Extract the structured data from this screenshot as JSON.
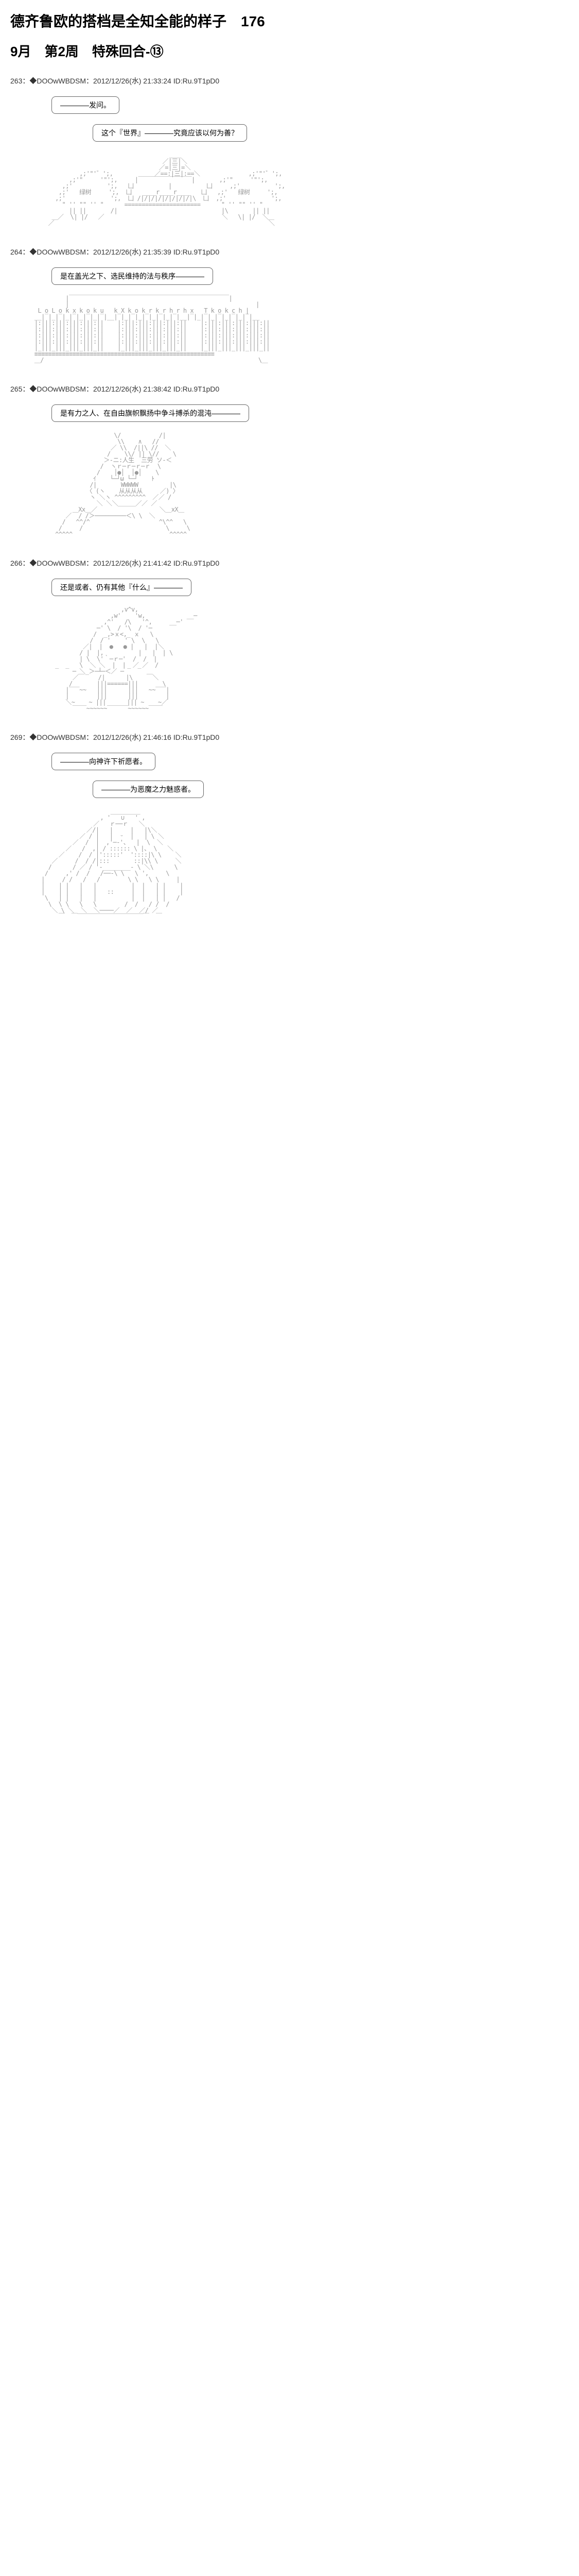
{
  "page_title": "德齐鲁欧的搭档是全知全能的样子　176",
  "chapter_title": "9月　第2周　特殊回合-⑬",
  "posts": [
    {
      "number": "263",
      "author": "◆DOOwWBDSM",
      "timestamp": "2012/12/26(水) 21:33:24",
      "id": "ID:Ru.9T1pD0",
      "speeches": [
        "————发问。",
        "这个『世界』————究竟应该以何为善？"
      ],
      "art": "temple"
    },
    {
      "number": "264",
      "author": "◆DOOwWBDSM",
      "timestamp": "2012/12/26(水) 21:35:39",
      "id": "ID:Ru.9T1pD0",
      "speeches": [
        "是在盖光之下、选民维持的法与秩序————"
      ],
      "art": "building"
    },
    {
      "number": "265",
      "author": "◆DOOwWBDSM",
      "timestamp": "2012/12/26(水) 21:38:42",
      "id": "ID:Ru.9T1pD0",
      "speeches": [
        "是有力之人、在自由旗帜飘扬中争斗搏杀的混沌————"
      ],
      "art": "demon"
    },
    {
      "number": "266",
      "author": "◆DOOwWBDSM",
      "timestamp": "2012/12/26(水) 21:41:42",
      "id": "ID:Ru.9T1pD0",
      "speeches": [
        "还是或者、仍有其他『什么』————"
      ],
      "art": "thinker"
    },
    {
      "number": "269",
      "author": "◆DOOwWBDSM",
      "timestamp": "2012/12/26(水) 21:46:16",
      "id": "ID:Ru.9T1pD0",
      "speeches": [
        "————向神许下祈愿者。",
        "————为恶魔之力魅惑者。"
      ],
      "art": "woman"
    }
  ],
  "ascii_arts": {
    "temple": "                                        ＿＿\n                                      ／|三|＼\n                                     ／=|三|=＼\n              ,;'\"'゛';,            ／==:|三|:==＼              ,;'\"'゛';,\n           ,;'\"     '\"';,     |￣￣￣￣￣￣￣￣￣|       ,;'\"     '\"';,\n         ,;'          ';,   凵          |          凵     ,;'          ';,\n        ,;'   绿树     ';,  凵   ____r____r____   凵   ,;'   绿树     ';,\n       ,;'             ';,  凵 /|/|/|/|/|/|/|/|\\  凵  ,;'             ';,\n         \" '' \"\" '' \"      ======================      \" '' \"\" '' \"\n           || ||       /|                              |\\       || ||\n      ＿／  \\| |/   ／                                  ＼   \\| |/  ＼＿\n     ／                                                              ＼",
    "building": "          |￣￣￣￣￣￣￣￣￣￣￣￣￣￣￣￣￣￣￣￣￣￣￣￣￣￣￣|\n          |                                                      |\n  L o L o k x k o k u   k X k o k r k r h r h x   T k o k c h |\n __|‾|_|‾|_|‾|_|‾|_|‾|__|‾|_|‾|_|‾|_|‾|_|‾|__|‾|_|‾|_|‾|_|‾|_|‾|__\n |:|||:|||:|||:|||:||    |:|||:|||:|||:|||:||    |:|||:|||:|||:|||:||\n |:|||:|||:|||:|||:||    |:|||:|||:|||:|||:||    |:|||:|||:|||:|||:||\n |:|||:|||:|||:|||:||    |:|||:|||:|||:|||:||    |:|||:|||:|||:|||:||\n |:|||:|||:|||:|||:||    |:|||:|||:|||:|||:||    |:|||:|||:|||:|||:||\n |_|||_|||_|||_|||_||    |_|||_|||_|||_|||_||    |_|||_|||_|||_|||_||\n ≡≡≡≡≡≡≡≡≡≡≡≡≡≡≡≡≡≡≡≡≡≡≡≡≡≡≡≡≡≡≡≡≡≡≡≡≡≡≡≡≡≡≡≡≡≡≡≡≡≡≡≡\n ＿/                                                              \\＿",
    "demon": "                        \\/           /|\n                         \\\\    ∧   // \n                       ／ \\\\  /||\\ //  ＼\n                      /    \\\\/ || \\//    \\\n                     ＞-ニ:人生  三劳 ソ-＜\n                    /  ヽｒ─ｒ─ｒ─ｒ  \\\n                   /    │●│  │●│    \\\n                  ｲ    └─┘ω └─┘    ﾄ\n                 /|       WWWWW         |\\\n                〈 (ヽ    从从从从     ／) 〉\n                 ヽ ＼ヽ ^^^^^^^^^  ／／ /\n                   ＼ ＼＼＿＿＿／／ ／\n            ＿Xx＿／                  ＼＿xX＿\n          ／  / /＞─────────＜\\ \\  ＼\n         /   ^^/^                    ^\\^^   \\\n        /     /                        \\     \\\n       ^^^^^                            ^^^^^",
    "thinker": "                          ,v^v,\n                       ,w'    'w,            __─\n                     ,^'   /\\   '^,     __─'\n                   ─' \\  / '\\  / '─\n                  /  _,>ｘ<,_ ｘ   \\\n                 /  / '    ' \\  \\   \\\n               ／|  |  ●   ● |   |  |＼\n              / |  |,          |   |  | \\\n              | \\  \\'｀─ｒ─'  /  /  |\n              \\  ＼ ＼  |  |  ／ ／  /\n       ‾  ‾ ─ ＼_＞─┴─＜／ ─ ‾  ‾\n            ／￣    /|      |\\    ￣＼\n           /       |||======|||       \\\n          |‾‾‾~~   |||      |||   ~~‾‾‾|\n          |        |||      |||        |\n          ＼~    ~ |||      ||| ~    ~／\n            ‾‾‾‾~~~~~~‾‾‾‾‾‾~~~~~~‾‾‾‾",
    "woman": "                       ＿＿＿＿＿\n                    , '   ∪   ' ,\n                  ／   ｒ──ｒ   ＼\n                ／/|   |     |   |\\＼\n              ／ / |   |  ᵕ  |   | \\ ＼\n            ／  /  |  ,'─‐'、  |  \\  ＼\n          ／   /  ,| / :::::: \\ |、 \\   ＼\n        ／    /  / |':::::'  '::::|\\ \\    ＼\n      ／     /  / /|:::       ::|\\\\ \\     ＼\n     /      / ／ / '-________- \\ ＼\\      \\\n    /     ,' /  /   /──‐\\ \\   \\ ',     \\\n   |     / /   /   /        \\ \\   \\ \\     |\n   |    | |   |   |          |  |   | |    |\n   |    | |   |   |   ::     |  |   | |    |\n    \\   | |   |   |          |  |   | |   /\n     \\  \\ \\   \\   \\        /  /   / /  /\n      ＼ \\ ＼  ＼  ＼────／  ／  ／/ ／\n        ￣  ￣‾‾‾‾‾‾‾‾‾‾‾‾‾‾‾‾‾‾‾￣  ￣"
  }
}
